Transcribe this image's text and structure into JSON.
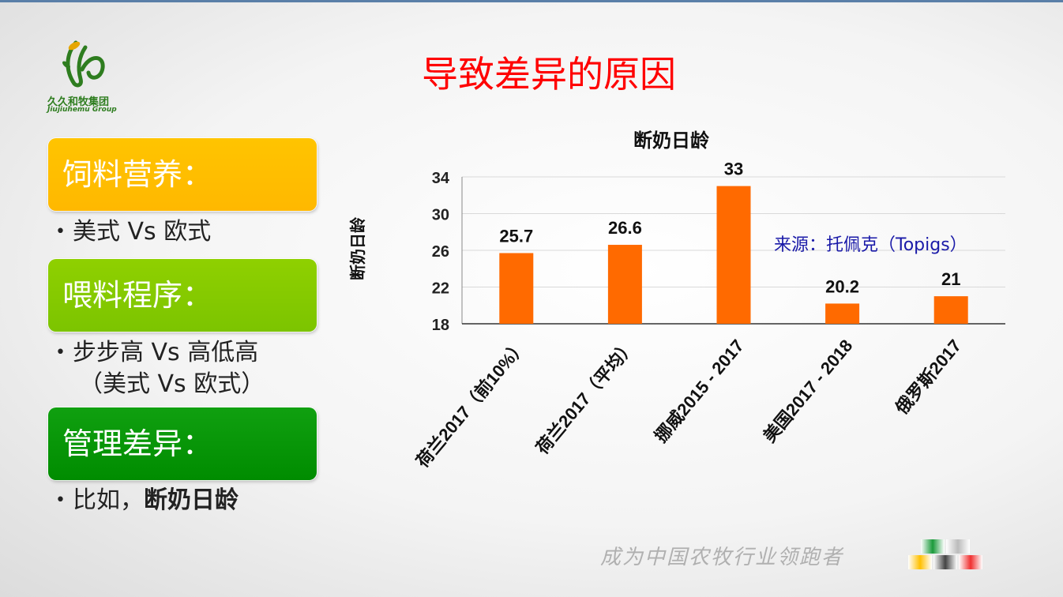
{
  "logo": {
    "name_cn": "久久和牧集团",
    "name_en": "Jiujiuhemu Group"
  },
  "title": "导致差异的原因",
  "factors": [
    {
      "heading": "饲料营养：",
      "bullet": "美式 Vs 欧式"
    },
    {
      "heading": "喂料程序：",
      "bullet": "步步高 Vs 高低高",
      "bullet_line2": "（美式 Vs 欧式）"
    },
    {
      "heading": "管理差异：",
      "bullet_prefix": "比如，",
      "bullet_strong": "断奶日龄"
    }
  ],
  "source_note": "来源：托佩克（Topigs）",
  "slogan": "成为中国农牧行业领跑者",
  "colors": {
    "title": "#ff0000",
    "bar": "#ff6a00",
    "box1": "#ffc000",
    "box2": "#80c800",
    "box3": "#009000",
    "source": "#1a1aa8"
  },
  "chart_data": {
    "type": "bar",
    "title": "断奶日龄",
    "ylabel": "断奶日龄",
    "xlabel": "",
    "categories": [
      "荷兰2017（前10%）",
      "荷兰2017（平均）",
      "挪威2015 - 2017",
      "美国2017 - 2018",
      "俄罗斯2017"
    ],
    "values": [
      25.7,
      26.6,
      33,
      20.2,
      21
    ],
    "value_labels": [
      "25.7",
      "26.6",
      "33",
      "20.2",
      "21"
    ],
    "ylim": [
      18,
      34
    ],
    "yticks": [
      18,
      22,
      26,
      30,
      34
    ],
    "grid": true,
    "legend": "none"
  }
}
